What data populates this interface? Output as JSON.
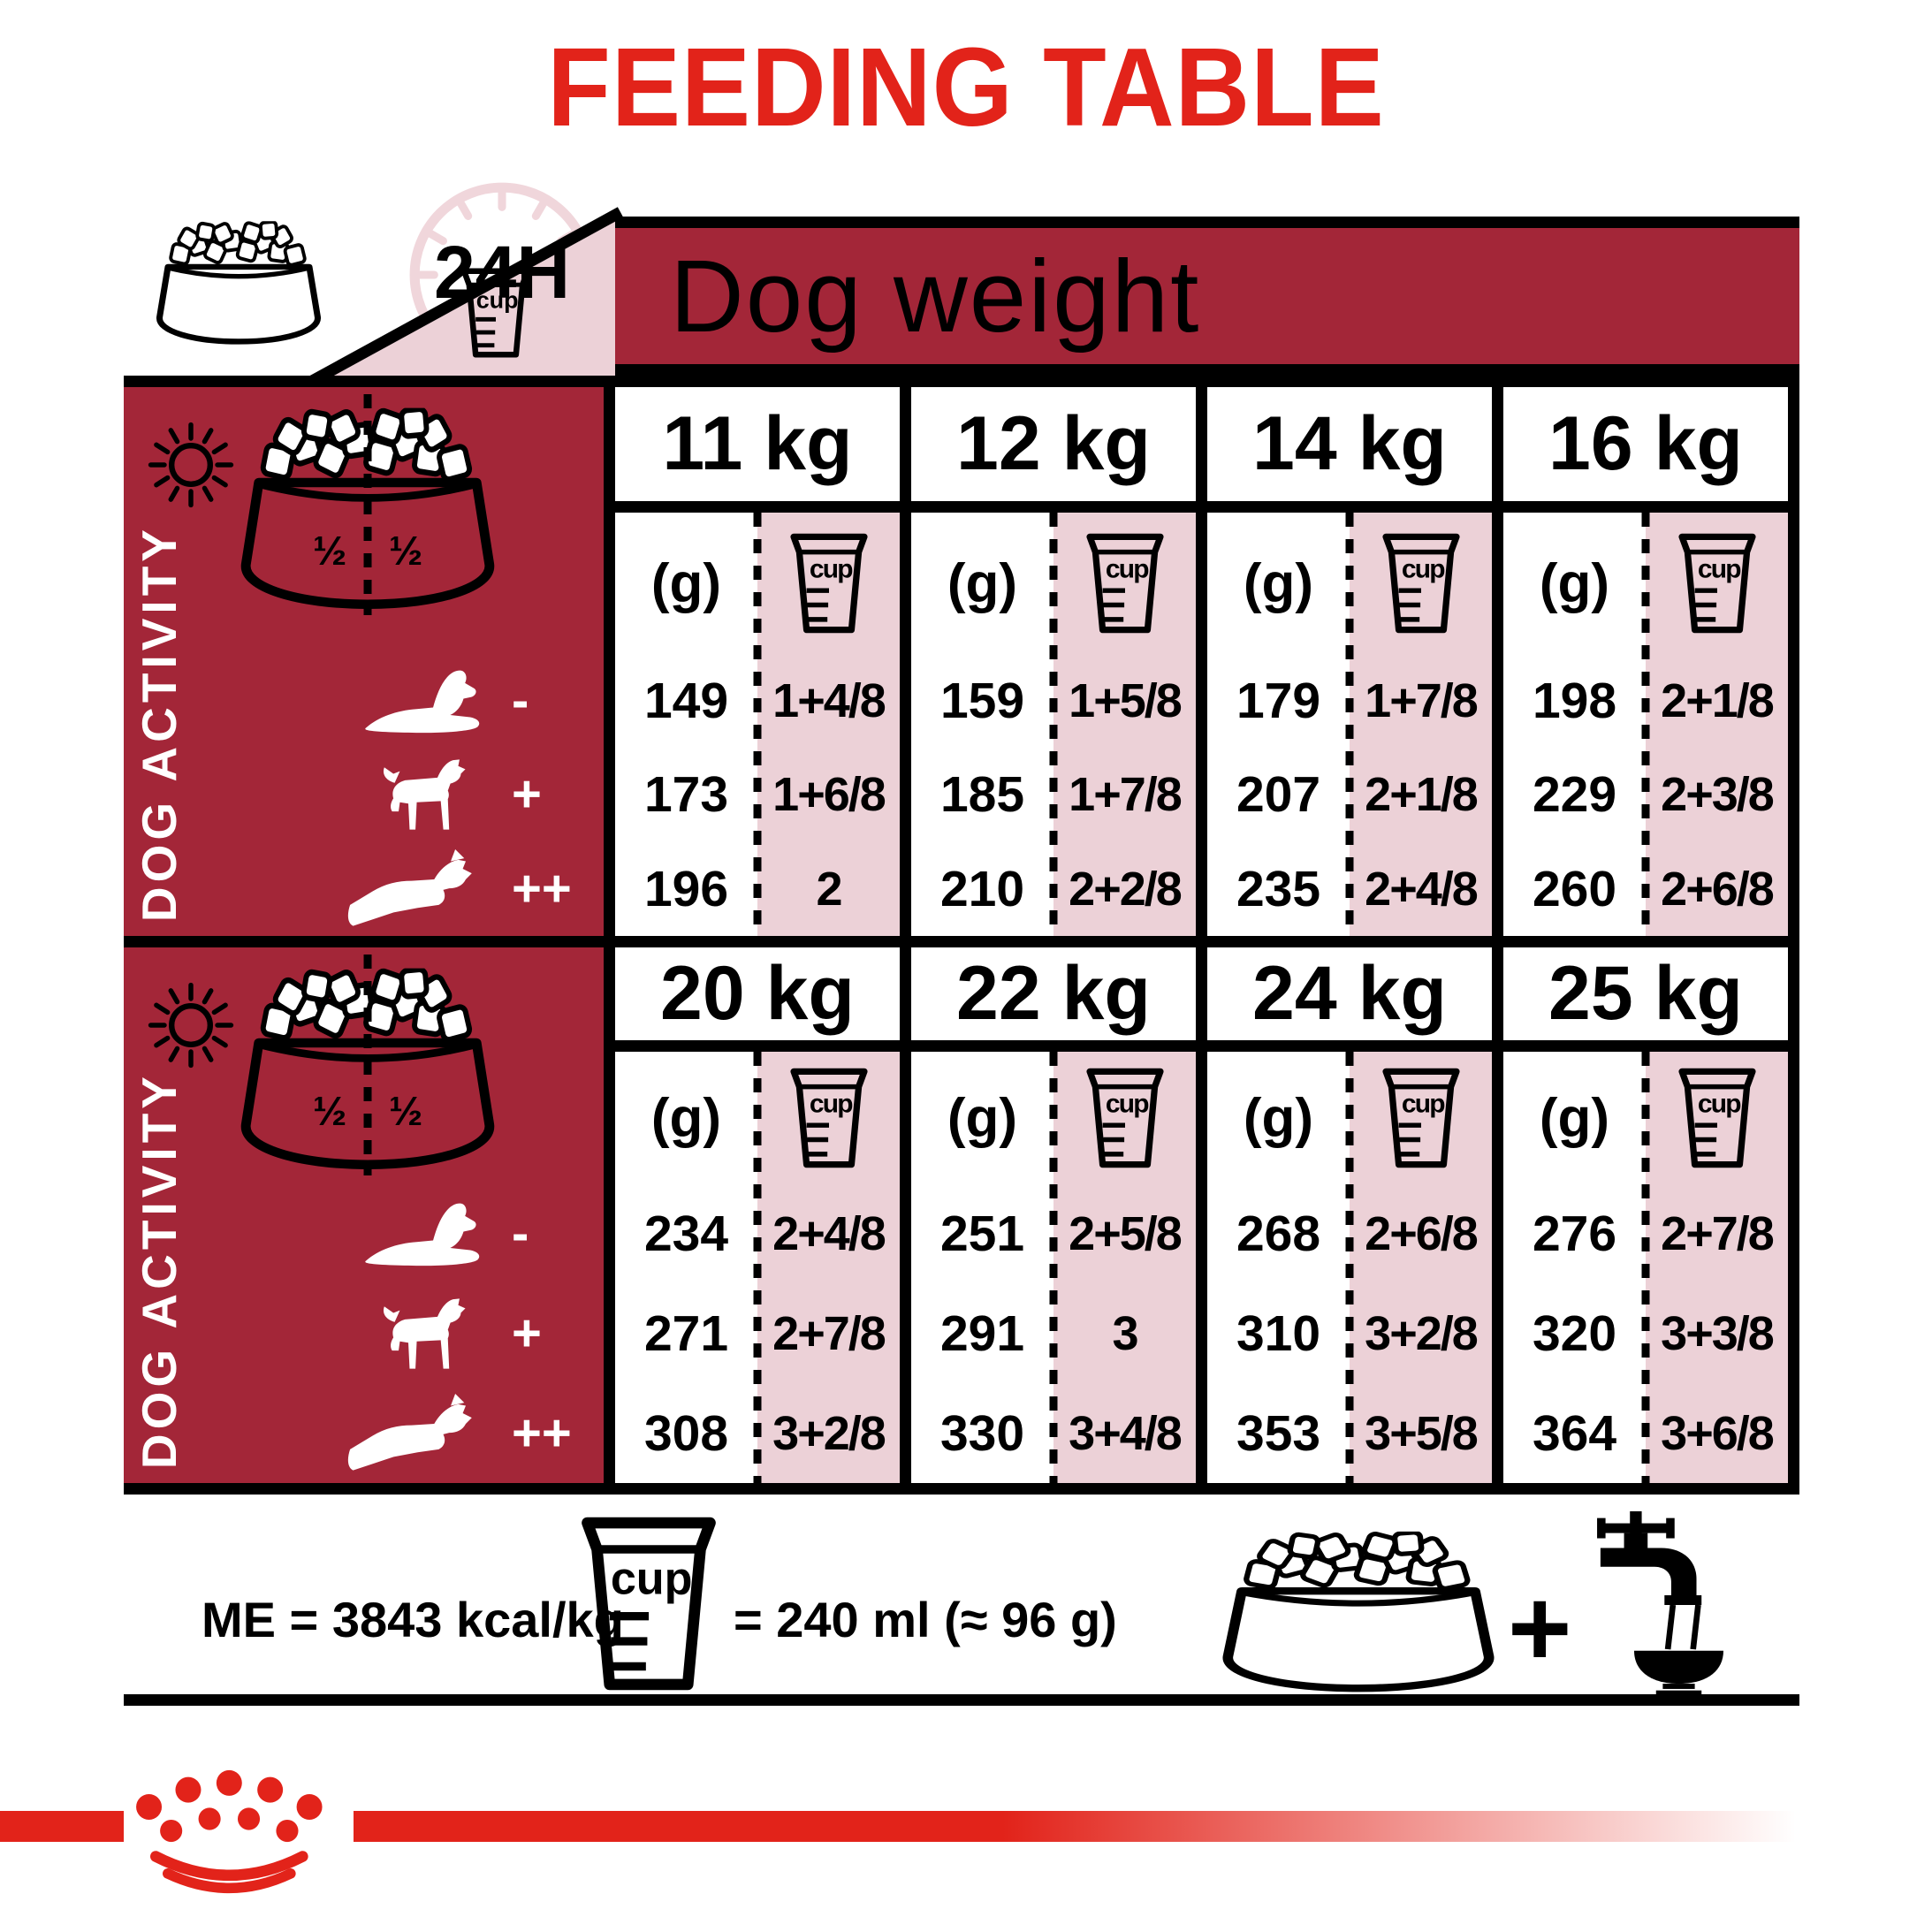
{
  "title": "FEEDING TABLE",
  "header": {
    "dog_weight_label": "Dog weight",
    "duration_label": "24H"
  },
  "labels": {
    "grams": "(g)",
    "cup": "cup",
    "half_left": "½",
    "half_right": "½"
  },
  "activity": {
    "panel_label": "DOG ACTIVITY",
    "levels": [
      {
        "symbol": "-",
        "name": "low activity",
        "icon": "dog-lying-icon"
      },
      {
        "symbol": "+",
        "name": "medium activity",
        "icon": "dog-standing-icon"
      },
      {
        "symbol": "++",
        "name": "high activity",
        "icon": "dog-running-icon"
      }
    ]
  },
  "chart_data": {
    "type": "table",
    "title": "FEEDING TABLE",
    "column_group_label": "Dog weight",
    "row_groups": [
      "low activity (-)",
      "medium activity (+)",
      "high activity (++)"
    ],
    "units": [
      "(g)",
      "cup"
    ],
    "sections": [
      {
        "columns": [
          {
            "weight": "11 kg",
            "grams": [
              "149",
              "173",
              "196"
            ],
            "cups": [
              "1+4/8",
              "1+6/8",
              "2"
            ]
          },
          {
            "weight": "12 kg",
            "grams": [
              "159",
              "185",
              "210"
            ],
            "cups": [
              "1+5/8",
              "1+7/8",
              "2+2/8"
            ]
          },
          {
            "weight": "14 kg",
            "grams": [
              "179",
              "207",
              "235"
            ],
            "cups": [
              "1+7/8",
              "2+1/8",
              "2+4/8"
            ]
          },
          {
            "weight": "16 kg",
            "grams": [
              "198",
              "229",
              "260"
            ],
            "cups": [
              "2+1/8",
              "2+3/8",
              "2+6/8"
            ]
          }
        ]
      },
      {
        "columns": [
          {
            "weight": "20 kg",
            "grams": [
              "234",
              "271",
              "308"
            ],
            "cups": [
              "2+4/8",
              "2+7/8",
              "3+2/8"
            ]
          },
          {
            "weight": "22 kg",
            "grams": [
              "251",
              "291",
              "330"
            ],
            "cups": [
              "2+5/8",
              "3",
              "3+4/8"
            ]
          },
          {
            "weight": "24 kg",
            "grams": [
              "268",
              "310",
              "353"
            ],
            "cups": [
              "2+6/8",
              "3+2/8",
              "3+5/8"
            ]
          },
          {
            "weight": "25 kg",
            "grams": [
              "276",
              "320",
              "364"
            ],
            "cups": [
              "2+7/8",
              "3+3/8",
              "3+6/8"
            ]
          }
        ]
      }
    ]
  },
  "footer": {
    "me_label": "ME = 3843 kcal/kg",
    "cup_equals_label": "= 240 ml (≈ 96 g)",
    "plus_label": "+"
  },
  "colors": {
    "accent_red": "#e2231a",
    "dark_red": "#a32638",
    "pink": "#ecd1d7",
    "pale_pink": "#f0d6db"
  },
  "icons": [
    "food-bowl-icon",
    "clock-24h-icon",
    "measuring-cup-icon",
    "sun-icon",
    "moon-icon",
    "dog-lying-icon",
    "dog-standing-icon",
    "dog-running-icon",
    "water-tap-icon",
    "plus-icon",
    "royal-canin-crown-icon"
  ]
}
